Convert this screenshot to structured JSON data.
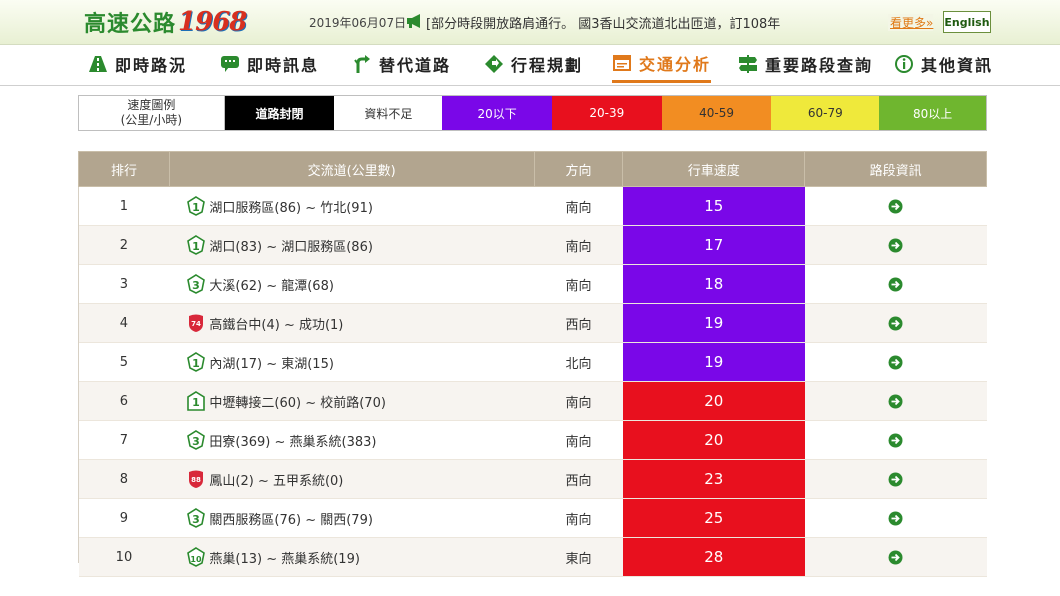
{
  "header": {
    "logo_text": "高速公路",
    "logo_number": "1968",
    "date": "2019年06月07日",
    "marquee": "[部分時段開放路肩通行。 國3香山交流道北出匝道，訂108年",
    "more_label": "看更多»",
    "english_label": "English"
  },
  "nav": {
    "items": [
      {
        "label": "即時路況",
        "icon": "road-icon"
      },
      {
        "label": "即時訊息",
        "icon": "message-icon"
      },
      {
        "label": "替代道路",
        "icon": "route-icon"
      },
      {
        "label": "行程規劃",
        "icon": "direction-icon"
      },
      {
        "label": "交通分析",
        "icon": "analysis-icon",
        "active": true
      },
      {
        "label": "重要路段查詢",
        "icon": "signpost-icon"
      },
      {
        "label": "其他資訊",
        "icon": "info-icon"
      }
    ]
  },
  "legend": {
    "title_line1": "速度圖例",
    "title_line2": "(公里/小時)",
    "items": [
      {
        "label": "道路封閉",
        "color": "#000000"
      },
      {
        "label": "資料不足",
        "color": "#ffffff"
      },
      {
        "label": "20以下",
        "color": "#7a07e8"
      },
      {
        "label": "20-39",
        "color": "#e8101e"
      },
      {
        "label": "40-59",
        "color": "#f28d22"
      },
      {
        "label": "60-79",
        "color": "#efe93b"
      },
      {
        "label": "80以上",
        "color": "#6fb62f"
      }
    ]
  },
  "table": {
    "headers": [
      "排行",
      "交流道(公里數)",
      "方向",
      "行車速度",
      "路段資訊"
    ],
    "rows": [
      {
        "rank": "1",
        "route": "1",
        "route_type": "national",
        "section": "湖口服務區(86) ~ 竹北(91)",
        "direction": "南向",
        "speed": "15",
        "color": "#7a07e8"
      },
      {
        "rank": "2",
        "route": "1",
        "route_type": "national",
        "section": "湖口(83) ~ 湖口服務區(86)",
        "direction": "南向",
        "speed": "17",
        "color": "#7a07e8"
      },
      {
        "rank": "3",
        "route": "3",
        "route_type": "national",
        "section": "大溪(62) ~ 龍潭(68)",
        "direction": "南向",
        "speed": "18",
        "color": "#7a07e8"
      },
      {
        "rank": "4",
        "route": "74",
        "route_type": "provincial",
        "section": "高鐵台中(4) ~ 成功(1)",
        "direction": "西向",
        "speed": "19",
        "color": "#7a07e8"
      },
      {
        "rank": "5",
        "route": "1",
        "route_type": "national",
        "section": "內湖(17) ~ 東湖(15)",
        "direction": "北向",
        "speed": "19",
        "color": "#7a07e8"
      },
      {
        "rank": "6",
        "route": "1",
        "route_type": "elevated",
        "section": "中壢轉接二(60) ~ 校前路(70)",
        "direction": "南向",
        "speed": "20",
        "color": "#e8101e"
      },
      {
        "rank": "7",
        "route": "3",
        "route_type": "national",
        "section": "田寮(369) ~ 燕巢系統(383)",
        "direction": "南向",
        "speed": "20",
        "color": "#e8101e"
      },
      {
        "rank": "8",
        "route": "88",
        "route_type": "provincial",
        "section": "鳳山(2) ~ 五甲系統(0)",
        "direction": "西向",
        "speed": "23",
        "color": "#e8101e"
      },
      {
        "rank": "9",
        "route": "3",
        "route_type": "national",
        "section": "關西服務區(76) ~ 關西(79)",
        "direction": "南向",
        "speed": "25",
        "color": "#e8101e"
      },
      {
        "rank": "10",
        "route": "10",
        "route_type": "national",
        "section": "燕巢(13) ~ 燕巢系統(19)",
        "direction": "東向",
        "speed": "28",
        "color": "#e8101e"
      }
    ]
  }
}
